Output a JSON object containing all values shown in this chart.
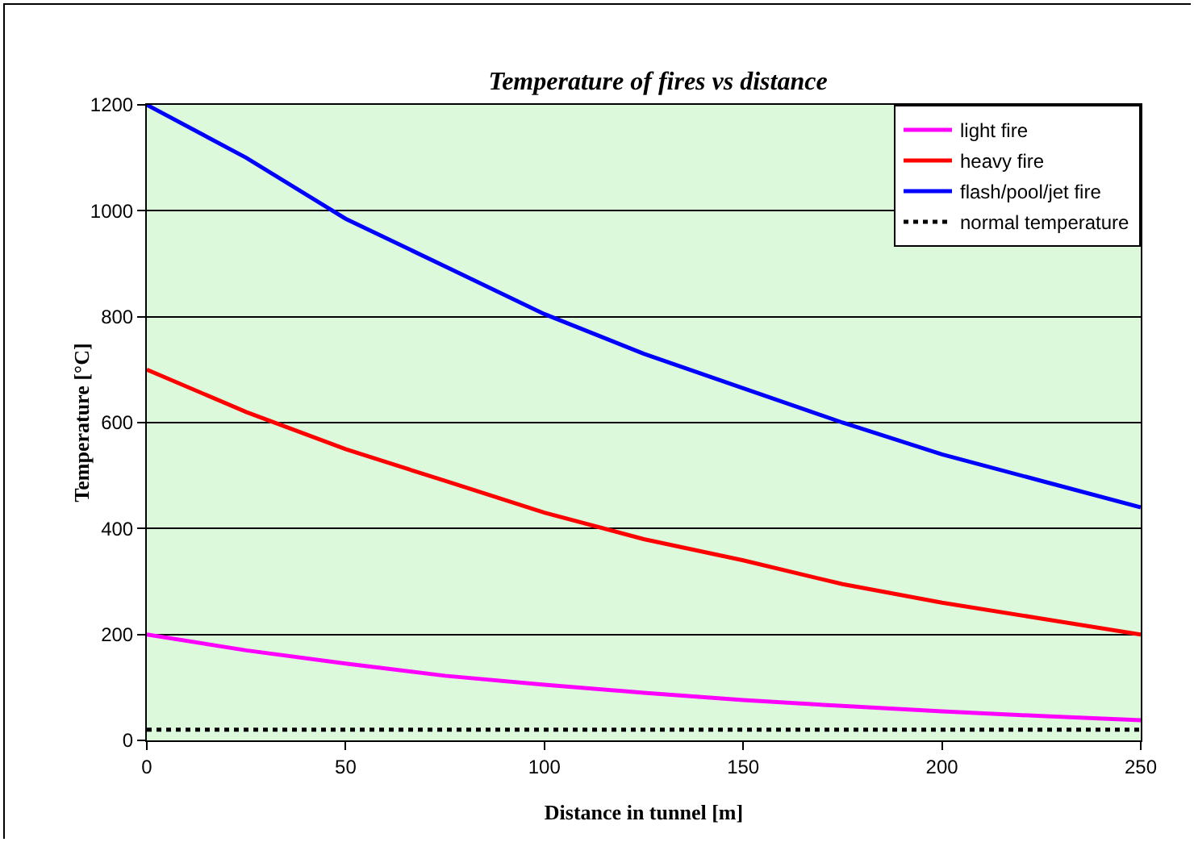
{
  "chart_data": {
    "type": "line",
    "title": "Temperature of fires vs distance",
    "xlabel": "Distance in tunnel [m]",
    "ylabel": "Temperature [°C]",
    "x": [
      0,
      25,
      50,
      75,
      100,
      125,
      150,
      175,
      200,
      225,
      250
    ],
    "series": [
      {
        "name": "light fire",
        "color": "#ff00ff",
        "values": [
          200,
          170,
          145,
          122,
          105,
          90,
          76,
          65,
          55,
          46,
          38
        ]
      },
      {
        "name": "heavy fire",
        "color": "#ff0000",
        "values": [
          700,
          620,
          550,
          490,
          430,
          380,
          340,
          295,
          260,
          230,
          200
        ]
      },
      {
        "name": "flash/pool/jet fire",
        "color": "#0000ff",
        "values": [
          1200,
          1100,
          985,
          895,
          805,
          730,
          665,
          600,
          540,
          490,
          440
        ]
      },
      {
        "name": "normal temperature",
        "color": "#000000",
        "line_style": "dotted",
        "x": [
          0,
          250
        ],
        "values": [
          20,
          20
        ]
      }
    ],
    "xlim": [
      0,
      250
    ],
    "xticks": [
      0,
      50,
      100,
      150,
      200,
      250
    ],
    "ylim": [
      0,
      1200
    ],
    "yticks": [
      0,
      200,
      400,
      600,
      800,
      1000,
      1200
    ],
    "grid": "y",
    "legend": "top right",
    "marker": "none"
  }
}
